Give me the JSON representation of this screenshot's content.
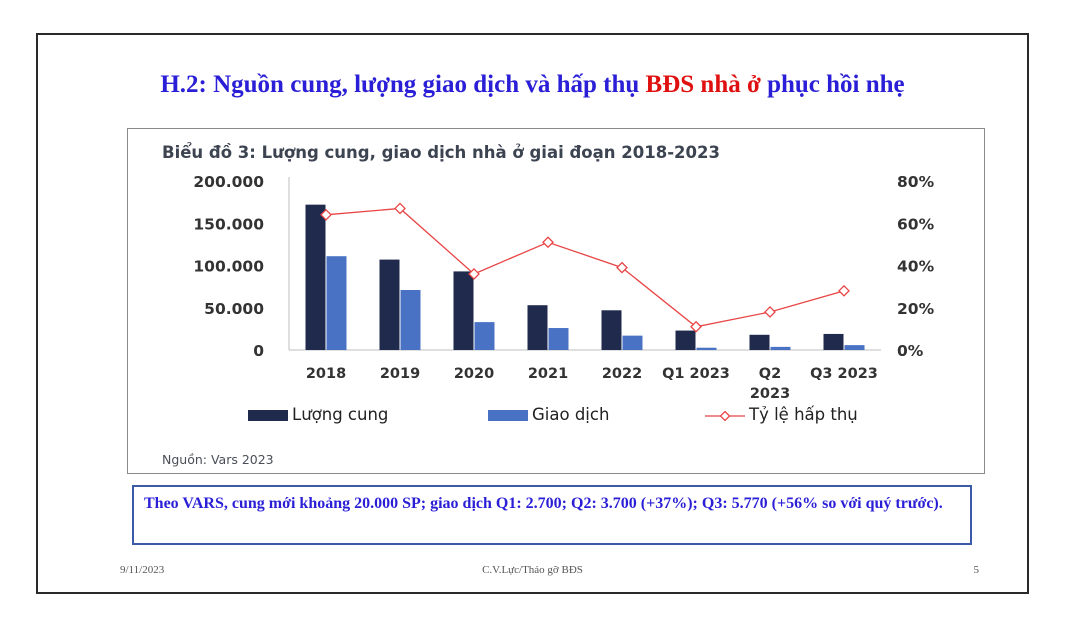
{
  "slide": {
    "title_part1": "H.2: Nguồn cung, lượng giao dịch và hấp thụ ",
    "title_highlight": "BĐS nhà ở",
    "title_part2": " phục hồi nhẹ",
    "note": "Theo VARS, cung mới khoảng 20.000 SP; giao dịch Q1: 2.700; Q2: 3.700 (+37%); Q3: 5.770 (+56% so với quý trước).",
    "footer_date": "9/11/2023",
    "footer_center": "C.V.Lực/Tháo gỡ BĐS",
    "page_number": "5",
    "colors": {
      "title": "#2a1fd6",
      "highlight": "#e01010",
      "note_border": "#3b5aa8"
    }
  },
  "chart_data": {
    "type": "bar",
    "title": "Biểu đồ 3: Lượng cung, giao dịch nhà ở giai đoạn 2018-2023",
    "source": "Nguồn: Vars 2023",
    "categories": [
      [
        "2018"
      ],
      [
        "2019"
      ],
      [
        "2020"
      ],
      [
        "2021"
      ],
      [
        "2022"
      ],
      [
        "Q1 2023"
      ],
      [
        "Q2",
        "2023"
      ],
      [
        "Q3 2023"
      ]
    ],
    "series": [
      {
        "name": "Lượng cung",
        "type": "bar",
        "axis": "left",
        "color": "#1f2a4d",
        "values": [
          172000,
          107000,
          93000,
          53000,
          47000,
          23000,
          18000,
          19000
        ]
      },
      {
        "name": "Giao dịch",
        "type": "bar",
        "axis": "left",
        "color": "#4a72c4",
        "values": [
          111000,
          71000,
          33000,
          26000,
          17000,
          2700,
          3700,
          5770
        ]
      },
      {
        "name": "Tỷ lệ hấp thụ",
        "type": "line",
        "axis": "right",
        "color": "#e84545",
        "values": [
          64,
          67,
          36,
          51,
          39,
          11,
          18,
          28
        ]
      }
    ],
    "y_left": {
      "ticks": [
        0,
        50000,
        100000,
        150000,
        200000
      ],
      "tick_labels": [
        "0",
        "50.000",
        "100.000",
        "150.000",
        "200.000"
      ],
      "ylim": [
        0,
        200000
      ]
    },
    "y_right": {
      "ticks": [
        0,
        20,
        40,
        60,
        80
      ],
      "tick_labels": [
        "0%",
        "20%",
        "40%",
        "60%",
        "80%"
      ],
      "ylim": [
        0,
        80
      ]
    },
    "legend_position": "bottom",
    "grid": false
  }
}
